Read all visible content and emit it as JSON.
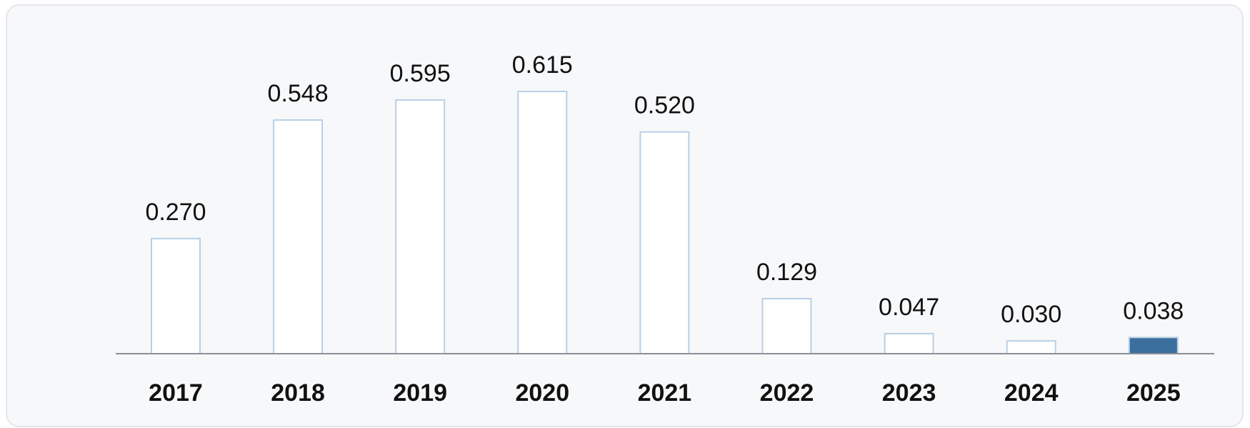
{
  "chart_data": {
    "type": "bar",
    "categories": [
      "2017",
      "2018",
      "2019",
      "2020",
      "2021",
      "2022",
      "2023",
      "2024",
      "2025"
    ],
    "values": [
      0.27,
      0.548,
      0.595,
      0.615,
      0.52,
      0.129,
      0.047,
      0.03,
      0.038
    ],
    "value_labels": [
      "0.270",
      "0.548",
      "0.595",
      "0.615",
      "0.520",
      "0.129",
      "0.047",
      "0.030",
      "0.038"
    ],
    "colors": [
      "#ffffff",
      "#ffffff",
      "#ffffff",
      "#ffffff",
      "#ffffff",
      "#ffffff",
      "#ffffff",
      "#ffffff",
      "#3a6f9e"
    ],
    "edge_color": "#b8d0e6"
  }
}
